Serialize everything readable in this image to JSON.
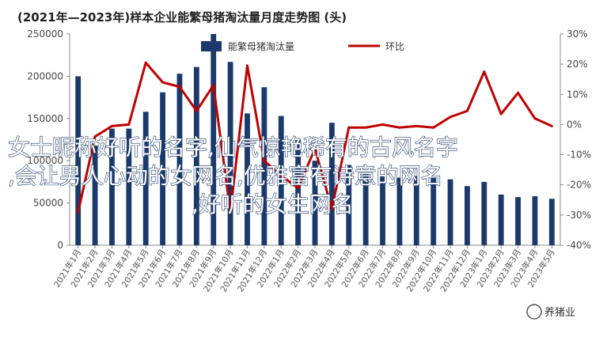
{
  "chart_data": {
    "type": "bar",
    "title": "(2021年—2023年)样本企业能繁母猪淘汰量月度走势图 (头)",
    "categories": [
      "2021年1月",
      "2021年2月",
      "2021年3月",
      "2021年4月",
      "2021年5月",
      "2021年6月",
      "2021年7月",
      "2021年8月",
      "2021年9月",
      "2021年10月",
      "2021年11月",
      "2021年12月",
      "2022年1月",
      "2022年2月",
      "2022年3月",
      "2022年4月",
      "2022年5月",
      "2022年6月",
      "2022年7月",
      "2022年8月",
      "2022年9月",
      "2022年10月",
      "2022年11月",
      "2022年12月",
      "2023年1月",
      "2023年2月",
      "2023年3月",
      "2023年4月",
      "2023年5月"
    ],
    "y_left": {
      "ylim": [
        0,
        250000
      ],
      "ticks": [
        "0",
        "50000",
        "100000",
        "150000",
        "200000",
        "250000"
      ]
    },
    "y_right": {
      "ylim": [
        -40,
        30
      ],
      "ticks": [
        "-40%",
        "-30%",
        "-20%",
        "-10%",
        "0%",
        "10%",
        "20%",
        "30%"
      ]
    },
    "series": [
      {
        "name": "能繁母猪淘汰量",
        "kind": "bar",
        "axis": "left",
        "color": "#1b3a6b",
        "values": [
          200000,
          118000,
          138000,
          138000,
          158000,
          181000,
          203000,
          211000,
          250000,
          217000,
          156000,
          187000,
          153000,
          125000,
          100000,
          145000,
          95000,
          84000,
          83000,
          80000,
          82000,
          80000,
          78000,
          70000,
          75000,
          60000,
          57000,
          58000,
          55000
        ]
      },
      {
        "name": "环比",
        "kind": "line",
        "axis": "right",
        "color": "#c00000",
        "values": [
          -29,
          -4,
          -0.5,
          0,
          20.5,
          14,
          12.5,
          4.5,
          13,
          -29,
          19.5,
          -12,
          -17,
          -21,
          -8,
          -28,
          -1,
          -1,
          0,
          -1,
          -0.5,
          -1,
          2.5,
          4.5,
          17.5,
          3.5,
          10.5,
          2,
          -0.5
        ]
      }
    ],
    "legend": {
      "placement": "top-center"
    }
  },
  "overlay_text": {
    "line1": "女士昵称好听的名字,仙气惊艳稀有的古风名字",
    "line2": ",会让男人心动的女网名,优雅富有诗意的网名",
    "line3": ",好听的女生网名"
  },
  "watermark": {
    "text": "养猪业"
  }
}
